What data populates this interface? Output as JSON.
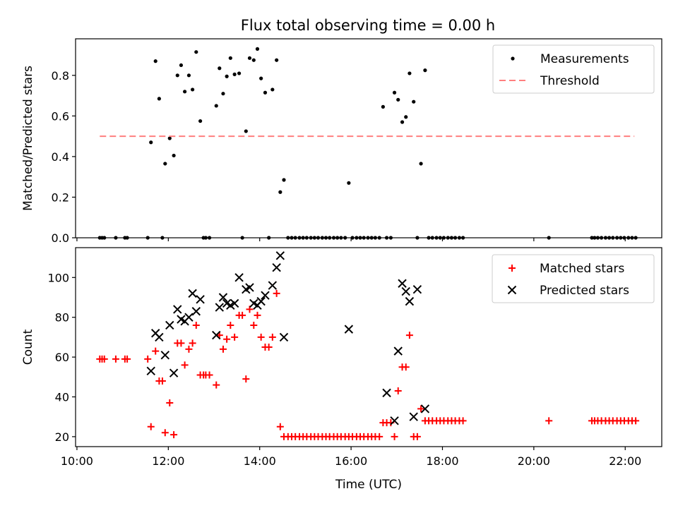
{
  "title": "Flux total observing time = 0.00 h",
  "chart_data": [
    {
      "type": "scatter",
      "ylabel": "Matched/Predicted stars",
      "xlim_hours": [
        9.97,
        22.8
      ],
      "ylim": [
        0,
        0.98
      ],
      "yticks": [
        0.0,
        0.2,
        0.4,
        0.6,
        0.8
      ],
      "ytick_labels": [
        "0.0",
        "0.2",
        "0.4",
        "0.6",
        "0.8"
      ],
      "grid": false,
      "legend_position": "top-right",
      "series": [
        {
          "name": "Measurements",
          "marker": "dot",
          "color": "#000000",
          "x": [
            10.5,
            10.55,
            10.6,
            10.85,
            11.05,
            11.1,
            11.55,
            11.62,
            11.72,
            11.8,
            11.87,
            11.93,
            12.03,
            12.12,
            12.2,
            12.28,
            12.36,
            12.45,
            12.53,
            12.61,
            12.7,
            12.77,
            12.82,
            12.9,
            13.05,
            13.12,
            13.2,
            13.28,
            13.36,
            13.45,
            13.55,
            13.62,
            13.7,
            13.78,
            13.87,
            13.95,
            14.03,
            14.12,
            14.2,
            14.28,
            14.37,
            14.45,
            14.53,
            14.62,
            14.7,
            14.78,
            14.87,
            14.95,
            15.03,
            15.12,
            15.2,
            15.28,
            15.37,
            15.45,
            15.53,
            15.62,
            15.7,
            15.78,
            15.87,
            15.95,
            16.03,
            16.12,
            16.2,
            16.28,
            16.37,
            16.45,
            16.53,
            16.62,
            16.7,
            16.78,
            16.87,
            16.95,
            17.03,
            17.12,
            17.2,
            17.28,
            17.37,
            17.45,
            17.53,
            17.62,
            17.7,
            17.78,
            17.87,
            17.95,
            18.03,
            18.12,
            18.2,
            18.28,
            18.37,
            18.45,
            20.33,
            21.27,
            21.33,
            21.4,
            21.48,
            21.57,
            21.65,
            21.73,
            21.82,
            21.9,
            21.98,
            22.07,
            22.15,
            22.23
          ],
          "y": [
            0,
            0,
            0,
            0,
            0,
            0,
            0,
            0.47,
            0.87,
            0.685,
            0,
            0.365,
            0.49,
            0.405,
            0.8,
            0.85,
            0.72,
            0.8,
            0.73,
            0.915,
            0.575,
            0,
            0,
            0,
            0.65,
            0.835,
            0.71,
            0.795,
            0.885,
            0.805,
            0.81,
            0,
            0.525,
            0.885,
            0.875,
            0.93,
            0.785,
            0.715,
            0,
            0.73,
            0.875,
            0.225,
            0.285,
            0,
            0,
            0,
            0,
            0,
            0,
            0,
            0,
            0,
            0,
            0,
            0,
            0,
            0,
            0,
            0,
            0.27,
            0,
            0,
            0,
            0,
            0,
            0,
            0,
            0,
            0.645,
            0,
            0,
            0.715,
            0.68,
            0.57,
            0.595,
            0.81,
            0.67,
            0,
            0.365,
            0.825,
            0,
            0,
            0,
            0,
            0,
            0,
            0,
            0,
            0,
            0,
            0,
            0,
            0,
            0,
            0,
            0,
            0,
            0,
            0,
            0,
            0,
            0,
            0,
            0
          ]
        },
        {
          "name": "Threshold",
          "marker": "dashed-line",
          "color": "#ff7f7f",
          "x": [
            10.5,
            22.2
          ],
          "y": [
            0.5,
            0.5
          ]
        }
      ]
    },
    {
      "type": "scatter",
      "xlabel": "Time (UTC)",
      "ylabel": "Count",
      "xlim_hours": [
        9.97,
        22.8
      ],
      "ylim": [
        15,
        115
      ],
      "xtick_hours": [
        10,
        12,
        14,
        16,
        18,
        20,
        22
      ],
      "xtick_labels": [
        "10:00",
        "12:00",
        "14:00",
        "16:00",
        "18:00",
        "20:00",
        "22:00"
      ],
      "yticks": [
        20,
        40,
        60,
        80,
        100
      ],
      "ytick_labels": [
        "20",
        "40",
        "60",
        "80",
        "100"
      ],
      "grid": false,
      "legend_position": "top-right",
      "series": [
        {
          "name": "Matched stars",
          "marker": "plus",
          "color": "#ff0000",
          "x": [
            10.5,
            10.55,
            10.6,
            10.85,
            11.05,
            11.1,
            11.55,
            11.62,
            11.72,
            11.8,
            11.87,
            11.93,
            12.03,
            12.12,
            12.2,
            12.28,
            12.36,
            12.45,
            12.53,
            12.61,
            12.7,
            12.77,
            12.82,
            12.9,
            13.05,
            13.12,
            13.2,
            13.28,
            13.36,
            13.45,
            13.55,
            13.62,
            13.7,
            13.78,
            13.87,
            13.95,
            14.03,
            14.12,
            14.2,
            14.28,
            14.37,
            14.45,
            14.53,
            14.62,
            14.7,
            14.78,
            14.87,
            14.95,
            15.03,
            15.12,
            15.2,
            15.28,
            15.37,
            15.45,
            15.53,
            15.62,
            15.7,
            15.78,
            15.87,
            15.95,
            16.03,
            16.12,
            16.2,
            16.28,
            16.37,
            16.45,
            16.53,
            16.62,
            16.7,
            16.78,
            16.87,
            16.95,
            17.03,
            17.12,
            17.2,
            17.28,
            17.37,
            17.45,
            17.53,
            17.62,
            17.7,
            17.78,
            17.87,
            17.95,
            18.03,
            18.12,
            18.2,
            18.28,
            18.37,
            18.45,
            20.33,
            21.27,
            21.33,
            21.4,
            21.48,
            21.57,
            21.65,
            21.73,
            21.82,
            21.9,
            21.98,
            22.07,
            22.15,
            22.23
          ],
          "y": [
            59,
            59,
            59,
            59,
            59,
            59,
            59,
            25,
            63,
            48,
            48,
            22,
            37,
            21,
            67,
            67,
            56,
            64,
            67,
            76,
            51,
            51,
            51,
            51,
            46,
            71,
            64,
            69,
            76,
            70,
            81,
            81,
            49,
            84,
            76,
            81,
            70,
            65,
            65,
            70,
            92,
            25,
            20,
            20,
            20,
            20,
            20,
            20,
            20,
            20,
            20,
            20,
            20,
            20,
            20,
            20,
            20,
            20,
            20,
            20,
            20,
            20,
            20,
            20,
            20,
            20,
            20,
            20,
            27,
            27,
            27,
            20,
            43,
            55,
            55,
            71,
            20,
            20,
            34,
            28,
            28,
            28,
            28,
            28,
            28,
            28,
            28,
            28,
            28,
            28,
            28,
            28,
            28,
            28,
            28,
            28,
            28,
            28,
            28,
            28,
            28,
            28,
            28,
            28
          ]
        },
        {
          "name": "Predicted stars",
          "marker": "x",
          "color": "#000000",
          "x": [
            11.62,
            11.72,
            11.8,
            11.93,
            12.03,
            12.12,
            12.2,
            12.28,
            12.36,
            12.45,
            12.53,
            12.61,
            12.7,
            13.05,
            13.12,
            13.2,
            13.28,
            13.36,
            13.45,
            13.55,
            13.7,
            13.78,
            13.87,
            13.95,
            14.03,
            14.12,
            14.28,
            14.37,
            14.45,
            14.53,
            15.95,
            16.78,
            16.95,
            17.03,
            17.12,
            17.2,
            17.28,
            17.37,
            17.45,
            17.62
          ],
          "y": [
            53,
            72,
            70,
            61,
            76,
            52,
            84,
            79,
            78,
            80,
            92,
            83,
            89,
            71,
            85,
            90,
            87,
            86,
            87,
            100,
            94,
            95,
            87,
            86,
            88,
            91,
            96,
            105,
            111,
            70,
            74,
            42,
            28,
            63,
            97,
            93,
            88,
            30,
            94,
            34
          ]
        }
      ]
    }
  ]
}
